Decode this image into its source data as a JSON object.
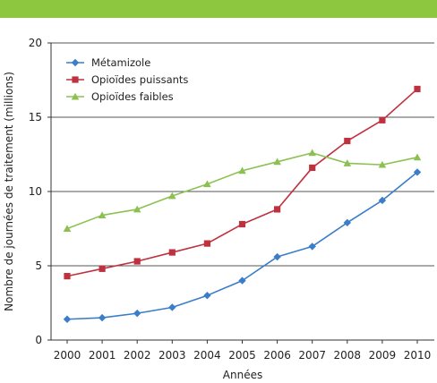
{
  "chart_data": {
    "type": "line",
    "xlabel": "Années",
    "ylabel": "Nombre de journées de traitement (millions)",
    "ylim": [
      0,
      20
    ],
    "yticks": [
      0,
      5,
      10,
      15,
      20
    ],
    "grid": "horizontal",
    "legend_position": "top-left",
    "categories": [
      "2000",
      "2001",
      "2002",
      "2003",
      "2004",
      "2005",
      "2006",
      "2007",
      "2008",
      "2009",
      "2010"
    ],
    "series": [
      {
        "name": "Métamizole",
        "color": "#3a7dc9",
        "marker": "diamond",
        "values": [
          1.4,
          1.5,
          1.8,
          2.2,
          3.0,
          4.0,
          5.6,
          6.3,
          7.9,
          9.4,
          11.3
        ]
      },
      {
        "name": "Opioïdes puissants",
        "color": "#c0313f",
        "marker": "square",
        "values": [
          4.3,
          4.8,
          5.3,
          5.9,
          6.5,
          7.8,
          8.8,
          11.6,
          13.4,
          14.8,
          16.9
        ]
      },
      {
        "name": "Opioïdes faibles",
        "color": "#8cc152",
        "marker": "triangle",
        "values": [
          7.5,
          8.4,
          8.8,
          9.7,
          10.5,
          11.4,
          12.0,
          12.6,
          11.9,
          11.8,
          12.3
        ]
      }
    ]
  },
  "colors": {
    "top_bar": "#8dc63f",
    "grid": "#555555"
  }
}
